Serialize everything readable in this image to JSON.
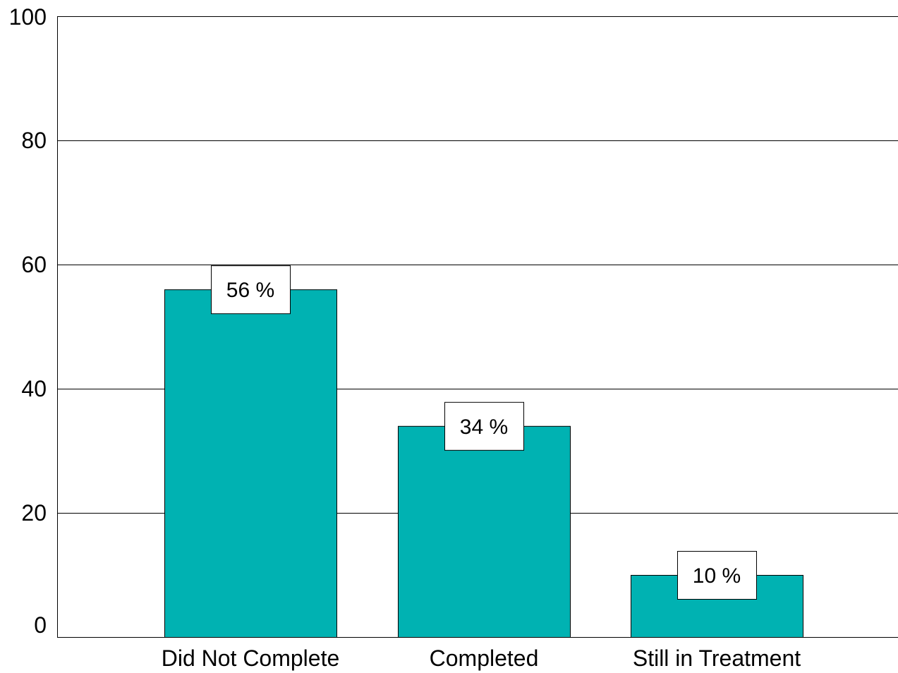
{
  "chart_data": {
    "type": "bar",
    "categories": [
      "Did Not Complete",
      "Completed",
      "Still in Treatment"
    ],
    "values": [
      56,
      34,
      10
    ],
    "data_labels": [
      "56 %",
      "34 %",
      "10 %"
    ],
    "yticks": [
      0,
      20,
      40,
      60,
      80,
      100
    ],
    "ytick_labels": [
      "0",
      "20",
      "40",
      "60",
      "80",
      "100"
    ],
    "ylim": [
      0,
      100
    ],
    "grid": true,
    "legend": "none",
    "colors": {
      "bar": "#00B2B2",
      "bar_stroke": "#000000",
      "grid": "#000000",
      "label_box": "#FFFFFF"
    }
  }
}
